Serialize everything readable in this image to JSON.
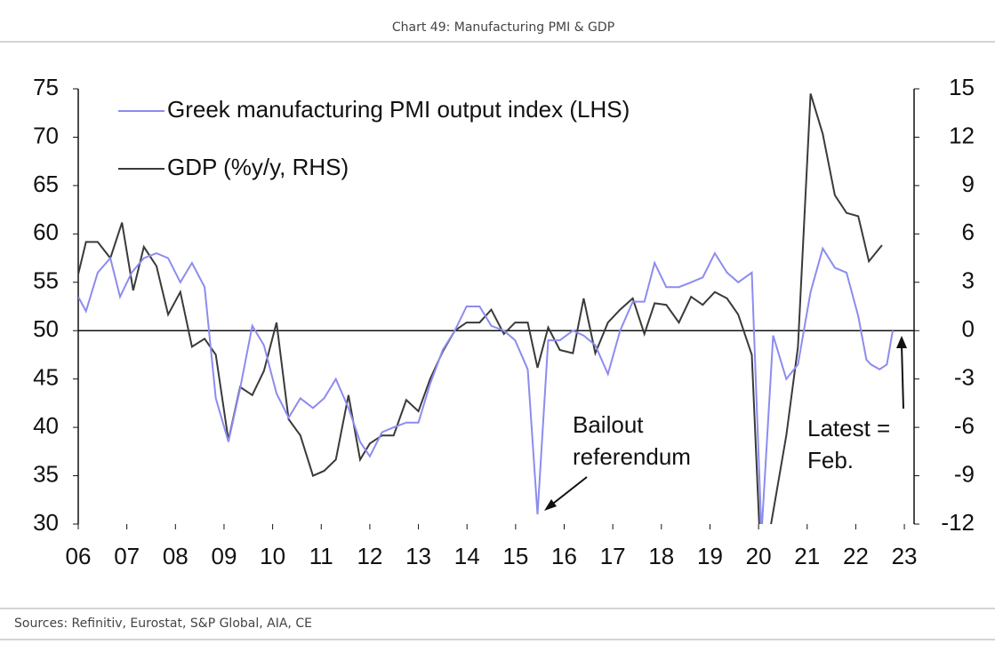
{
  "chart_data": {
    "type": "line",
    "title": "Chart 49: Manufacturing PMI & GDP",
    "source": "Sources: Refinitiv, Eurostat, S&P Global, AIA,  CE",
    "annotations": [
      {
        "lines": [
          "Bailout",
          "referendum"
        ]
      },
      {
        "lines": [
          "Latest =",
          "Feb."
        ]
      }
    ],
    "xlim": [
      2006,
      2023.2
    ],
    "xticks": [
      {
        "value": 2006,
        "label": "06"
      },
      {
        "value": 2007,
        "label": "07"
      },
      {
        "value": 2008,
        "label": "08"
      },
      {
        "value": 2009,
        "label": "09"
      },
      {
        "value": 2010,
        "label": "10"
      },
      {
        "value": 2011,
        "label": "11"
      },
      {
        "value": 2012,
        "label": "12"
      },
      {
        "value": 2013,
        "label": "13"
      },
      {
        "value": 2014,
        "label": "14"
      },
      {
        "value": 2015,
        "label": "15"
      },
      {
        "value": 2016,
        "label": "16"
      },
      {
        "value": 2017,
        "label": "17"
      },
      {
        "value": 2018,
        "label": "18"
      },
      {
        "value": 2019,
        "label": "19"
      },
      {
        "value": 2020,
        "label": "20"
      },
      {
        "value": 2021,
        "label": "21"
      },
      {
        "value": 2022,
        "label": "22"
      },
      {
        "value": 2023,
        "label": "23"
      }
    ],
    "ylim": [
      30,
      75
    ],
    "yticks": [
      30,
      35,
      40,
      45,
      50,
      55,
      60,
      65,
      70,
      75
    ],
    "y2lim": [
      -12,
      15
    ],
    "y2ticks": [
      -12,
      -9,
      -6,
      -3,
      0,
      3,
      6,
      9,
      12,
      15
    ],
    "series": [
      {
        "name": "Greek manufacturing PMI output index (LHS)",
        "color": "#8c8cf0",
        "x": [
          2006.0,
          2006.16,
          2006.4,
          2006.66,
          2006.86,
          2007.1,
          2007.35,
          2007.61,
          2007.85,
          2008.1,
          2008.34,
          2008.6,
          2008.83,
          2009.09,
          2009.33,
          2009.58,
          2009.82,
          2010.08,
          2010.33,
          2010.57,
          2010.83,
          2011.06,
          2011.3,
          2011.56,
          2011.8,
          2012.0,
          2012.25,
          2012.49,
          2012.75,
          2013.0,
          2013.24,
          2013.5,
          2013.75,
          2013.99,
          2014.26,
          2014.5,
          2014.76,
          2014.99,
          2015.25,
          2015.45,
          2015.67,
          2015.91,
          2016.18,
          2016.4,
          2016.64,
          2016.9,
          2017.15,
          2017.41,
          2017.65,
          2017.86,
          2018.1,
          2018.36,
          2018.61,
          2018.85,
          2019.1,
          2019.35,
          2019.58,
          2019.86,
          2020.06,
          2020.3,
          2020.57,
          2020.81,
          2021.07,
          2021.32,
          2021.57,
          2021.81,
          2022.05,
          2022.22,
          2022.31,
          2022.49,
          2022.64,
          2022.76
        ],
        "values": [
          53.5,
          52,
          56,
          57.5,
          53.5,
          56,
          57.5,
          58,
          57.5,
          55,
          57,
          54.5,
          43,
          38.5,
          44,
          50.5,
          48.5,
          43.5,
          41,
          43,
          42,
          43,
          45,
          42,
          38.5,
          37,
          39.5,
          40,
          40.5,
          40.5,
          44.5,
          48,
          50,
          52.5,
          52.5,
          50.5,
          50,
          49,
          46,
          31,
          49,
          49,
          50,
          49.5,
          48.5,
          45.5,
          50,
          53,
          53,
          57,
          54.5,
          54.5,
          55,
          55.5,
          58,
          56,
          55,
          56,
          29,
          49.5,
          45,
          46.5,
          54,
          58.5,
          56.5,
          56,
          51.5,
          47,
          46.5,
          46,
          46.5,
          50
        ]
      },
      {
        "name": "GDP (%y/y, RHS)",
        "color": "#3a3a3a",
        "axis": "y2",
        "x": [
          2006.0,
          2006.16,
          2006.4,
          2006.66,
          2006.9,
          2007.13,
          2007.35,
          2007.61,
          2007.85,
          2008.1,
          2008.34,
          2008.6,
          2008.83,
          2009.09,
          2009.33,
          2009.58,
          2009.82,
          2010.08,
          2010.33,
          2010.57,
          2010.83,
          2011.06,
          2011.3,
          2011.56,
          2011.8,
          2012.0,
          2012.25,
          2012.49,
          2012.75,
          2013.0,
          2013.24,
          2013.5,
          2013.75,
          2013.99,
          2014.26,
          2014.5,
          2014.76,
          2014.99,
          2015.25,
          2015.45,
          2015.67,
          2015.91,
          2016.18,
          2016.4,
          2016.64,
          2016.9,
          2017.15,
          2017.41,
          2017.65,
          2017.86,
          2018.1,
          2018.36,
          2018.61,
          2018.85,
          2019.1,
          2019.35,
          2019.58,
          2019.86,
          2020.02,
          2020.24,
          2020.57,
          2020.81,
          2021.07,
          2021.32,
          2021.57,
          2021.81,
          2022.05,
          2022.27,
          2022.54
        ],
        "values": [
          3.5,
          5.5,
          5.5,
          4.5,
          6.7,
          2.5,
          5.2,
          4,
          1,
          2.4,
          -1,
          -0.5,
          -1.5,
          -6.8,
          -3.5,
          -4,
          -2.5,
          0.5,
          -5.5,
          -6.5,
          -9,
          -8.7,
          -8,
          -4,
          -8,
          -7,
          -6.5,
          -6.5,
          -4.3,
          -5,
          -3,
          -1.3,
          0,
          0.5,
          0.5,
          1.3,
          -0.2,
          0.5,
          0.5,
          -2.3,
          0.2,
          -1.2,
          -1.4,
          2,
          -1.4,
          0.5,
          1.3,
          2,
          -0.2,
          1.7,
          1.6,
          0.5,
          2.1,
          1.6,
          2.4,
          2,
          1,
          -1.5,
          -12.5,
          -12.3,
          -6.5,
          -1,
          14.7,
          12.2,
          8.4,
          7.3,
          7.1,
          4.3,
          5.3
        ]
      }
    ]
  }
}
